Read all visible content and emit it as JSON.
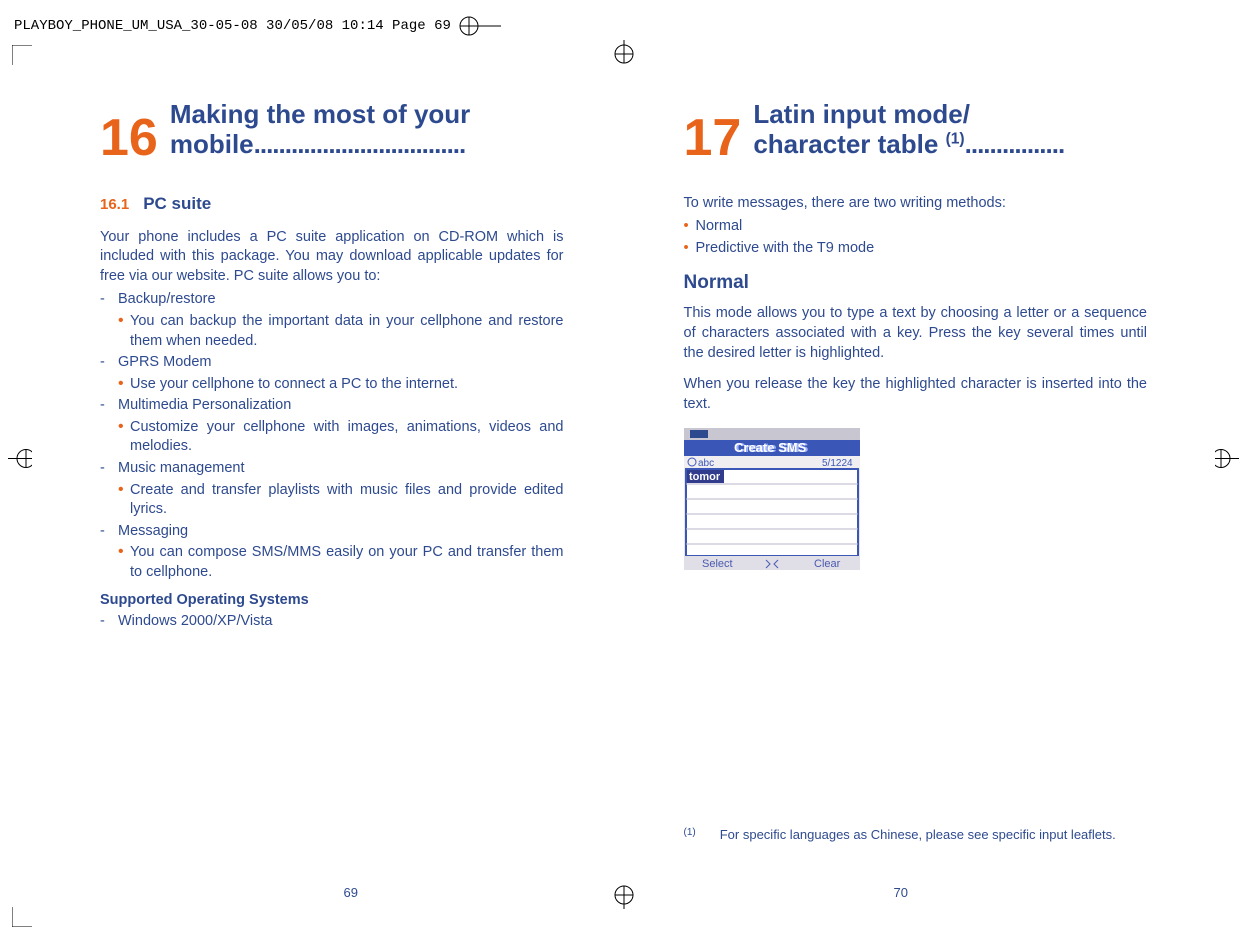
{
  "header": "PLAYBOY_PHONE_UM_USA_30-05-08  30/05/08  10:14  Page 69",
  "left": {
    "chapter_num": "16",
    "chapter_title": "Making the most of your mobile",
    "dots": "..................................",
    "section_num": "16.1",
    "section_title": "PC suite",
    "intro": "Your phone includes a PC suite application on CD-ROM which is included with this package.  You may download applicable updates for free via our website.  PC suite allows you to:",
    "items": [
      {
        "label": "Backup/restore",
        "subs": [
          "You can backup the important data in your cellphone and restore them when needed."
        ]
      },
      {
        "label": "GPRS Modem",
        "subs": [
          "Use your cellphone to connect a PC to the internet."
        ]
      },
      {
        "label": "Multimedia Personalization",
        "subs": [
          "Customize your cellphone with images, animations, videos and melodies."
        ]
      },
      {
        "label": "Music management",
        "subs": [
          "Create and transfer playlists with music files and provide edited lyrics."
        ]
      },
      {
        "label": "Messaging",
        "subs": [
          "You can compose SMS/MMS easily on your PC and transfer them to cellphone."
        ]
      }
    ],
    "os_heading": "Supported Operating Systems",
    "os_item": "Windows 2000/XP/Vista",
    "page_num": "69"
  },
  "right": {
    "chapter_num": "17",
    "chapter_title_line1": "Latin input mode/",
    "chapter_title_line2": "character table",
    "sup": "(1)",
    "dots": "................",
    "intro": "To write messages, there are two writing methods:",
    "bullets": [
      "Normal",
      "Predictive with the T9 mode"
    ],
    "sub_heading": "Normal",
    "p1": "This mode allows you to type a text by choosing a letter or a sequence of characters associated with a key. Press the key several times until the desired letter is highlighted.",
    "p2": "When you release the key the highlighted character is inserted into the text.",
    "screen": {
      "title": "Create SMS",
      "mode_label": "abc",
      "counter": "5/1224",
      "entered": "tomor",
      "select": "Select",
      "clear": "Clear"
    },
    "footnote_mark": "(1)",
    "footnote": "For specific languages as Chinese, please see specific input leaflets.",
    "page_num": "70"
  },
  "colors": {
    "blue": "#2e4a8f",
    "orange": "#e8641a",
    "screen_bar": "#3a57b8",
    "screen_bg": "#f0eef0",
    "screen_entered_bg": "#323c8c",
    "screen_line": "#b8b6c8"
  }
}
